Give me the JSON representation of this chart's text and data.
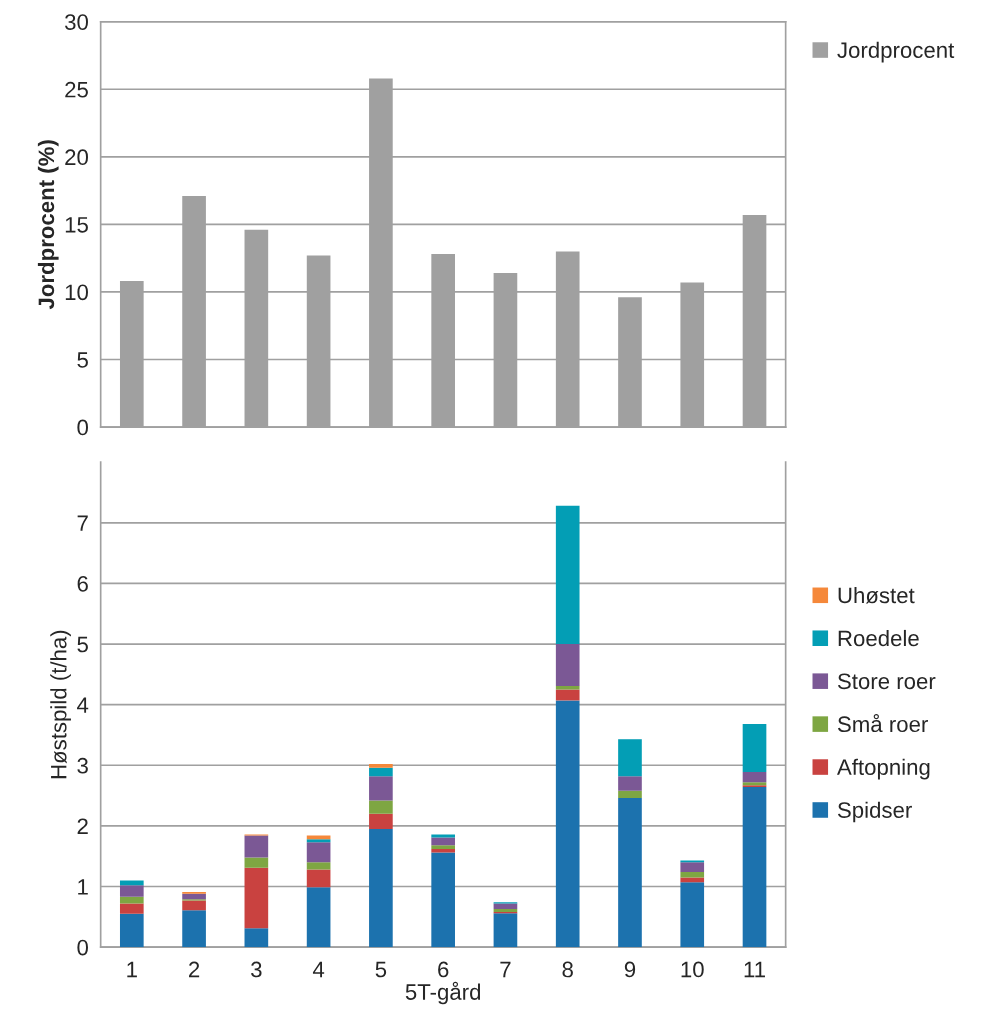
{
  "chart_data": [
    {
      "type": "bar",
      "ylabel": "Jordprocent (%)",
      "categories": [
        "1",
        "2",
        "3",
        "4",
        "5",
        "6",
        "7",
        "8",
        "9",
        "10",
        "11"
      ],
      "series": [
        {
          "name": "Jordprocent",
          "color": "#a0a0a0",
          "values": [
            10.8,
            17.1,
            14.6,
            12.7,
            25.8,
            12.8,
            11.4,
            13.0,
            9.6,
            10.7,
            15.7
          ]
        }
      ],
      "ylim": [
        0,
        30
      ],
      "yticks": [
        0,
        5,
        10,
        15,
        20,
        25,
        30
      ],
      "grid": "y",
      "legend": "top right",
      "tick_labels": "y"
    },
    {
      "type": "bar",
      "stacked": true,
      "xlabel": "5T-gård",
      "ylabel": "Høstspild (t/ha)",
      "categories": [
        "1",
        "2",
        "3",
        "4",
        "5",
        "6",
        "7",
        "8",
        "9",
        "10",
        "11"
      ],
      "series": [
        {
          "name": "Spidser",
          "color": "#1c72ae",
          "values": [
            0.55,
            0.61,
            0.31,
            0.99,
            1.95,
            1.56,
            0.56,
            4.07,
            2.46,
            1.07,
            2.64
          ]
        },
        {
          "name": "Aftopning",
          "color": "#c94240",
          "values": [
            0.17,
            0.16,
            1.0,
            0.29,
            0.25,
            0.06,
            0.02,
            0.18,
            0,
            0.08,
            0.03
          ]
        },
        {
          "name": "Små roer",
          "color": "#7ea642",
          "values": [
            0.11,
            0.02,
            0.17,
            0.12,
            0.22,
            0.06,
            0.05,
            0.06,
            0.12,
            0.09,
            0.05
          ]
        },
        {
          "name": "Store roer",
          "color": "#7b5895",
          "values": [
            0.19,
            0.09,
            0.36,
            0.33,
            0.4,
            0.13,
            0.09,
            0.69,
            0.24,
            0.16,
            0.17
          ]
        },
        {
          "name": "Roedele",
          "color": "#039eb5",
          "values": [
            0.08,
            0,
            0,
            0.05,
            0.14,
            0.05,
            0.02,
            2.28,
            0.61,
            0.03,
            0.79
          ]
        },
        {
          "name": "Uhøstet",
          "color": "#f5883a",
          "values": [
            0,
            0.03,
            0.02,
            0.06,
            0.06,
            0,
            0,
            0,
            0,
            0,
            0
          ]
        }
      ],
      "ylim": [
        0,
        8
      ],
      "yticks": [
        0,
        1,
        2,
        3,
        4,
        5,
        6,
        7
      ],
      "grid": "y",
      "legend": "right"
    }
  ]
}
